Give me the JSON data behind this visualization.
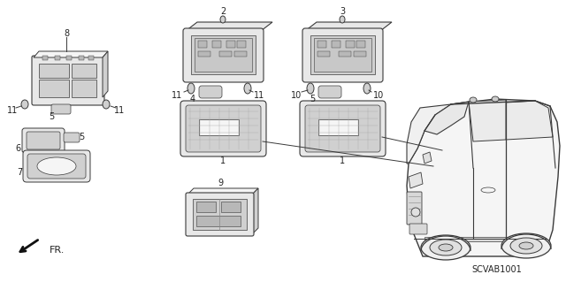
{
  "background_color": "#ffffff",
  "diagram_code": "SCVAB1001",
  "fr_label": "FR.",
  "figsize": [
    6.4,
    3.19
  ],
  "dpi": 100,
  "ec": "#3a3a3a",
  "fc_body": "#e8e8e8",
  "fc_inner": "#d0d0d0",
  "fc_dark": "#b8b8b8",
  "fc_white": "#f5f5f5"
}
